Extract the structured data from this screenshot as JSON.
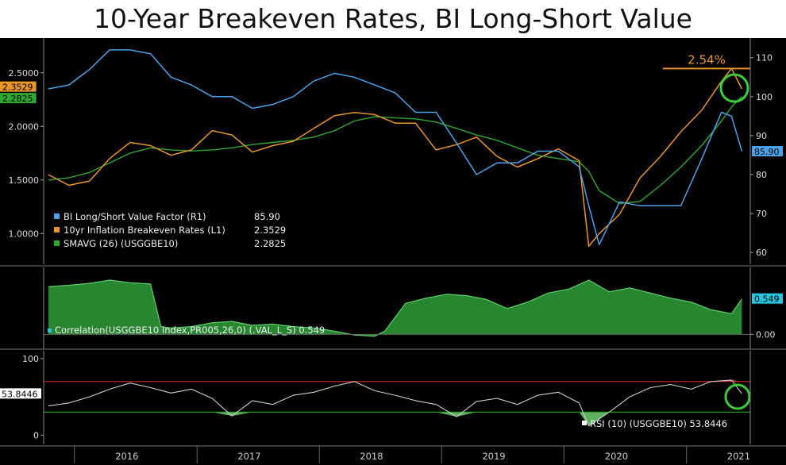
{
  "title": "10-Year Breakeven Rates, BI Long-Short Value",
  "colors": {
    "value_factor": "#4aa3e8",
    "breakeven": "#e8962a",
    "smavg": "#2fa82f",
    "correlation_fill": "#2f9e3a",
    "rsi_line": "#cfcfcf",
    "rsi_upper": "#c02020",
    "rsi_lower": "#2a9a2a",
    "annotation": "#e8962a",
    "circle": "#3ccc3c"
  },
  "annotation": {
    "text": "2.54%"
  },
  "chart_data": [
    {
      "type": "line",
      "panel": "price",
      "x": [
        "2015-10",
        "2015-12",
        "2016-02",
        "2016-04",
        "2016-06",
        "2016-08",
        "2016-10",
        "2016-12",
        "2017-02",
        "2017-04",
        "2017-06",
        "2017-08",
        "2017-10",
        "2017-12",
        "2018-02",
        "2018-04",
        "2018-06",
        "2018-08",
        "2018-10",
        "2018-12",
        "2019-02",
        "2019-04",
        "2019-06",
        "2019-08",
        "2019-10",
        "2019-12",
        "2020-02",
        "2020-03",
        "2020-04",
        "2020-06",
        "2020-08",
        "2020-10",
        "2020-12",
        "2021-02",
        "2021-04",
        "2021-05",
        "2021-06"
      ],
      "series": [
        {
          "name": "BI Long/Short Value Factor (R1)",
          "axis": "right",
          "last_value": "85.90",
          "values": [
            102,
            103,
            107,
            112,
            112,
            111,
            105,
            103,
            100,
            100,
            97,
            98,
            100,
            104,
            106,
            105,
            103,
            101,
            96,
            96,
            88,
            80,
            83,
            83,
            86,
            86,
            82,
            72,
            62,
            73,
            72,
            72,
            72,
            84,
            96,
            95,
            86
          ]
        },
        {
          "name": "10yr Inflation Breakeven Rates (L1)",
          "axis": "left",
          "last_value": "2.3529",
          "values": [
            1.55,
            1.45,
            1.49,
            1.7,
            1.85,
            1.82,
            1.73,
            1.78,
            1.96,
            1.92,
            1.76,
            1.82,
            1.86,
            1.98,
            2.1,
            2.13,
            2.11,
            2.03,
            2.03,
            1.78,
            1.83,
            1.9,
            1.72,
            1.62,
            1.7,
            1.79,
            1.68,
            0.88,
            1.0,
            1.18,
            1.52,
            1.72,
            1.95,
            2.15,
            2.42,
            2.54,
            2.35
          ]
        },
        {
          "name": "SMAVG (26) (USGGBE10)",
          "axis": "left",
          "last_value": "2.2825",
          "values": [
            1.5,
            1.52,
            1.57,
            1.66,
            1.75,
            1.8,
            1.78,
            1.77,
            1.78,
            1.8,
            1.83,
            1.85,
            1.87,
            1.9,
            1.96,
            2.05,
            2.09,
            2.08,
            2.07,
            2.04,
            1.98,
            1.92,
            1.87,
            1.8,
            1.73,
            1.7,
            1.67,
            1.58,
            1.4,
            1.28,
            1.3,
            1.45,
            1.62,
            1.82,
            2.05,
            2.18,
            2.28
          ]
        }
      ],
      "y_left": {
        "ticks": [
          "1.0000",
          "1.5000",
          "2.0000",
          "2.5000"
        ],
        "range": [
          0.75,
          2.75
        ]
      },
      "y_right": {
        "ticks": [
          "60",
          "70",
          "80",
          "90",
          "100",
          "110"
        ],
        "range": [
          58,
          113
        ]
      },
      "legend": "bottom-left"
    },
    {
      "type": "area",
      "panel": "correlation",
      "x": [
        "2015-10",
        "2015-12",
        "2016-02",
        "2016-04",
        "2016-06",
        "2016-08",
        "2016-09",
        "2016-10",
        "2016-12",
        "2017-02",
        "2017-04",
        "2017-06",
        "2017-08",
        "2017-10",
        "2017-12",
        "2018-02",
        "2018-04",
        "2018-06",
        "2018-07",
        "2018-09",
        "2018-11",
        "2019-01",
        "2019-03",
        "2019-05",
        "2019-07",
        "2019-09",
        "2019-11",
        "2020-01",
        "2020-03",
        "2020-05",
        "2020-07",
        "2020-09",
        "2020-11",
        "2021-01",
        "2021-03",
        "2021-05",
        "2021-06"
      ],
      "series": [
        {
          "name": "Correlation(USGGBE10 Index,PR005,26,0) (.VAL_L_S)",
          "last_value": "0.549",
          "values": [
            0.74,
            0.76,
            0.79,
            0.84,
            0.8,
            0.78,
            0.12,
            0.1,
            0.12,
            0.18,
            0.2,
            0.14,
            0.16,
            0.12,
            0.1,
            0.05,
            -0.01,
            -0.03,
            0.05,
            0.48,
            0.56,
            0.62,
            0.6,
            0.54,
            0.4,
            0.5,
            0.64,
            0.7,
            0.84,
            0.66,
            0.72,
            0.64,
            0.56,
            0.5,
            0.38,
            0.32,
            0.549
          ]
        }
      ],
      "y_right": {
        "ticks": [
          "0.00"
        ],
        "range": [
          -0.18,
          1.0
        ]
      }
    },
    {
      "type": "line",
      "panel": "rsi",
      "x": [
        "2015-10",
        "2015-12",
        "2016-02",
        "2016-04",
        "2016-06",
        "2016-08",
        "2016-10",
        "2016-12",
        "2017-02",
        "2017-04",
        "2017-06",
        "2017-08",
        "2017-10",
        "2017-12",
        "2018-02",
        "2018-04",
        "2018-06",
        "2018-08",
        "2018-10",
        "2018-12",
        "2019-02",
        "2019-04",
        "2019-06",
        "2019-08",
        "2019-10",
        "2019-12",
        "2020-02",
        "2020-03",
        "2020-05",
        "2020-07",
        "2020-09",
        "2020-11",
        "2021-01",
        "2021-03",
        "2021-05",
        "2021-06"
      ],
      "series": [
        {
          "name": "RSI (10) (USGGBE10)",
          "last_value": "53.8446",
          "values": [
            38,
            42,
            50,
            60,
            68,
            62,
            55,
            60,
            48,
            25,
            45,
            40,
            52,
            56,
            64,
            70,
            58,
            52,
            45,
            40,
            24,
            44,
            48,
            40,
            52,
            56,
            42,
            12,
            30,
            50,
            62,
            66,
            60,
            70,
            72,
            54
          ]
        }
      ],
      "upper": 70,
      "lower": 30,
      "y_left": {
        "ticks": [
          "0",
          "100"
        ],
        "range": [
          -8,
          104
        ]
      },
      "y_left_label": "53.8446"
    }
  ],
  "x_axis": {
    "labels": [
      "2016",
      "2017",
      "2018",
      "2019",
      "2020",
      "2021"
    ]
  },
  "legend_rows": [
    {
      "label": "BI Long/Short Value Factor (R1)",
      "value": "85.90"
    },
    {
      "label": "10yr Inflation Breakeven Rates (L1)",
      "value": "2.3529"
    },
    {
      "label": "SMAVG (26) (USGGBE10)",
      "value": "2.2825"
    }
  ],
  "correlation_legend": "Correlation(USGGBE10 Index,PR005,26,0) (.VAL_L_S) 0.549",
  "rsi_legend": "RSI (10) (USGGBE10) 53.8446"
}
